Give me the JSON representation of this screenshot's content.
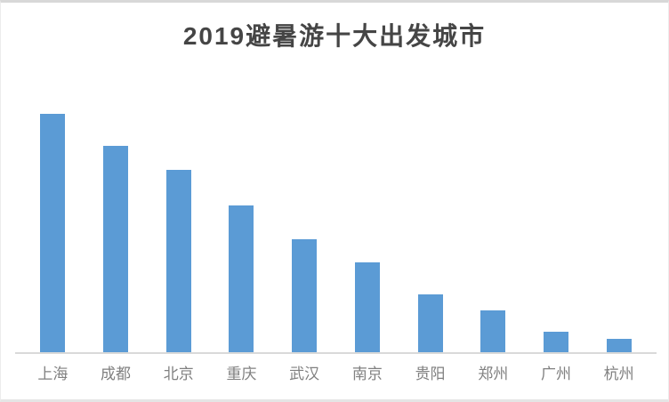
{
  "chart_data": {
    "type": "bar",
    "title": "2019避暑游十大出发城市",
    "categories": [
      "上海",
      "成都",
      "北京",
      "重庆",
      "武汉",
      "南京",
      "贵阳",
      "郑州",
      "广州",
      "杭州"
    ],
    "values": [
      100,
      86.6,
      76.5,
      61.6,
      47.4,
      37.7,
      24.3,
      17.5,
      8.6,
      5.6
    ],
    "xlabel": "",
    "ylabel": "",
    "ylim": [
      0,
      100
    ],
    "value_note": "no y-axis or data labels visible; values are relative bar heights with Shanghai = 100",
    "grid": false,
    "legend_position": "none",
    "bar_color": "#5B9BD5",
    "axis_line_color": "#D9D9D9",
    "title_color": "#454545",
    "label_color": "#808080"
  }
}
